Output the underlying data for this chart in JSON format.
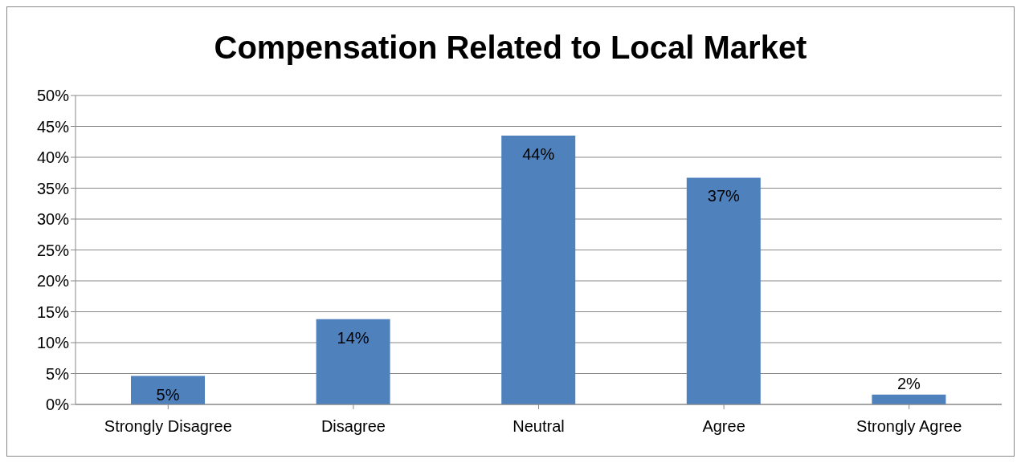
{
  "chart_data": {
    "type": "bar",
    "title": "Compensation Related to Local Market",
    "categories": [
      "Strongly Disagree",
      "Disagree",
      "Neutral",
      "Agree",
      "Strongly Agree"
    ],
    "values": [
      4.6,
      13.8,
      43.5,
      36.7,
      1.6
    ],
    "value_labels": [
      "5%",
      "14%",
      "44%",
      "37%",
      "2%"
    ],
    "color": "#4f81bd",
    "ylim": [
      0,
      50
    ],
    "yticks": [
      {
        "value": 0,
        "label": "0%"
      },
      {
        "value": 5,
        "label": "5%"
      },
      {
        "value": 10,
        "label": "10%"
      },
      {
        "value": 15,
        "label": "15%"
      },
      {
        "value": 20,
        "label": "20%"
      },
      {
        "value": 25,
        "label": "25%"
      },
      {
        "value": 30,
        "label": "30%"
      },
      {
        "value": 35,
        "label": "35%"
      },
      {
        "value": 40,
        "label": "40%"
      },
      {
        "value": 45,
        "label": "45%"
      },
      {
        "value": 50,
        "label": "50%"
      }
    ],
    "grid": "y",
    "legend": false
  }
}
